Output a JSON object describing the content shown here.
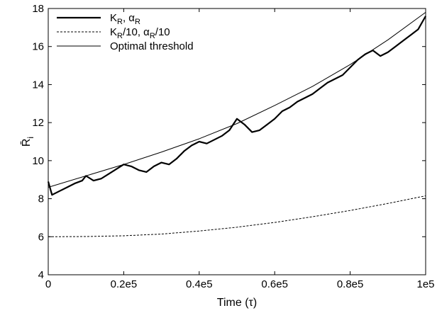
{
  "chart_data": {
    "type": "line",
    "title": "",
    "xlabel": "Time (τ)",
    "ylabel": "R̄",
    "ylabel_subscript": "i",
    "xlim": [
      0,
      100000
    ],
    "ylim": [
      4,
      18
    ],
    "xticks": [
      0,
      20000,
      40000,
      60000,
      80000,
      100000
    ],
    "xtick_labels": [
      "0",
      "0.2e5",
      "0.4e5",
      "0.6e5",
      "0.8e5",
      "1e5"
    ],
    "yticks": [
      4,
      6,
      8,
      10,
      12,
      14,
      16,
      18
    ],
    "ytick_labels": [
      "4",
      "6",
      "8",
      "10",
      "12",
      "14",
      "16",
      "18"
    ],
    "grid": false,
    "legend_position": "top-left",
    "series": [
      {
        "name": "K_R, α_R",
        "style": "thick-solid",
        "color": "#000000",
        "x": [
          0,
          1000,
          3000,
          5000,
          7000,
          9000,
          10000,
          12000,
          14000,
          16000,
          18000,
          20000,
          22000,
          24000,
          26000,
          28000,
          30000,
          32000,
          34000,
          36000,
          38000,
          40000,
          42000,
          44000,
          46000,
          48000,
          50000,
          52000,
          54000,
          56000,
          58000,
          60000,
          62000,
          64000,
          66000,
          68000,
          70000,
          72000,
          74000,
          76000,
          78000,
          80000,
          82000,
          84000,
          86000,
          88000,
          90000,
          92000,
          94000,
          96000,
          98000,
          100000
        ],
        "y": [
          8.9,
          8.2,
          8.4,
          8.6,
          8.8,
          8.95,
          9.2,
          8.95,
          9.05,
          9.3,
          9.55,
          9.8,
          9.7,
          9.5,
          9.4,
          9.7,
          9.9,
          9.8,
          10.1,
          10.5,
          10.8,
          11.0,
          10.9,
          11.1,
          11.3,
          11.6,
          12.2,
          11.9,
          11.5,
          11.6,
          11.9,
          12.2,
          12.6,
          12.8,
          13.1,
          13.3,
          13.5,
          13.8,
          14.1,
          14.3,
          14.5,
          14.9,
          15.3,
          15.6,
          15.8,
          15.5,
          15.7,
          16.0,
          16.3,
          16.6,
          16.9,
          17.6
        ]
      },
      {
        "name": "K_R/10, α_R/10",
        "style": "dashed",
        "color": "#000000",
        "x": [
          0,
          10000,
          20000,
          30000,
          40000,
          50000,
          60000,
          70000,
          80000,
          90000,
          100000
        ],
        "y": [
          6.0,
          6.01,
          6.05,
          6.14,
          6.3,
          6.5,
          6.75,
          7.05,
          7.38,
          7.75,
          8.15
        ]
      },
      {
        "name": "Optimal threshold",
        "style": "thin-solid",
        "color": "#000000",
        "x": [
          0,
          10000,
          20000,
          30000,
          40000,
          50000,
          60000,
          70000,
          80000,
          90000,
          100000
        ],
        "y": [
          8.6,
          9.2,
          9.8,
          10.45,
          11.15,
          11.95,
          12.9,
          13.9,
          15.05,
          16.35,
          17.8
        ]
      }
    ],
    "legend_entries": [
      {
        "main": "K",
        "sub": "R",
        "mid": ", α",
        "sub2": "R",
        "tail": ""
      },
      {
        "main": "K",
        "sub": "R",
        "mid": "/10, α",
        "sub2": "R",
        "tail": "/10"
      },
      {
        "main": "Optimal threshold",
        "sub": "",
        "mid": "",
        "sub2": "",
        "tail": ""
      }
    ]
  }
}
